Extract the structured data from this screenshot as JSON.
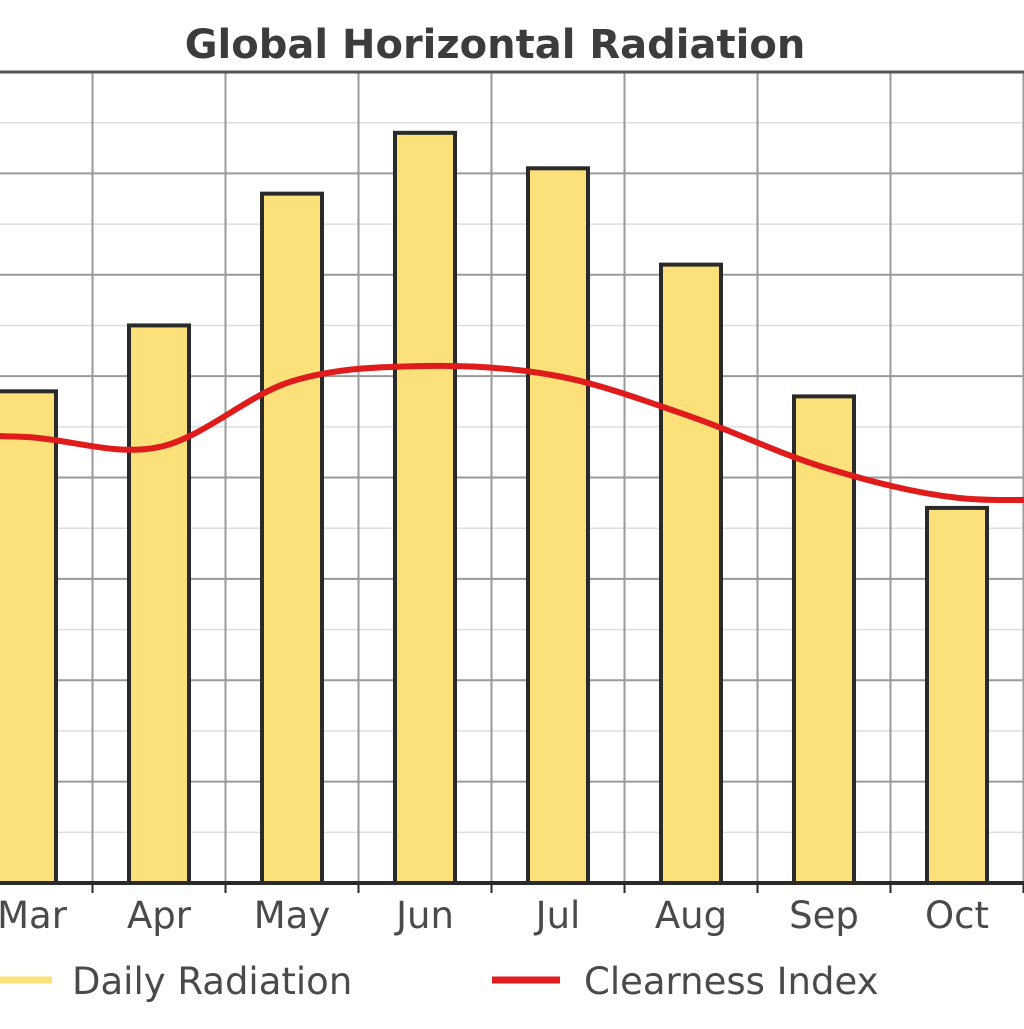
{
  "chart_data": {
    "type": "bar",
    "title": "Global Horizontal Radiation",
    "categories": [
      "Mar",
      "Apr",
      "May",
      "Jun",
      "Jul",
      "Aug",
      "Sep",
      "Oct"
    ],
    "series": [
      {
        "name": "Daily Radiation",
        "type": "bar",
        "values": [
          4.85,
          5.5,
          6.8,
          7.4,
          7.05,
          6.1,
          4.8,
          3.7
        ],
        "color": "#fce17a",
        "edge_color": "#2a2a2a"
      },
      {
        "name": "Clearness Index",
        "type": "line",
        "values": [
          4.4,
          4.3,
          4.95,
          5.1,
          5.0,
          4.6,
          4.1,
          3.8
        ],
        "color": "#e01b1b"
      }
    ],
    "ylim": [
      0,
      8
    ],
    "grid": true,
    "legend": "bottom",
    "xlabel": "",
    "ylabel": ""
  }
}
